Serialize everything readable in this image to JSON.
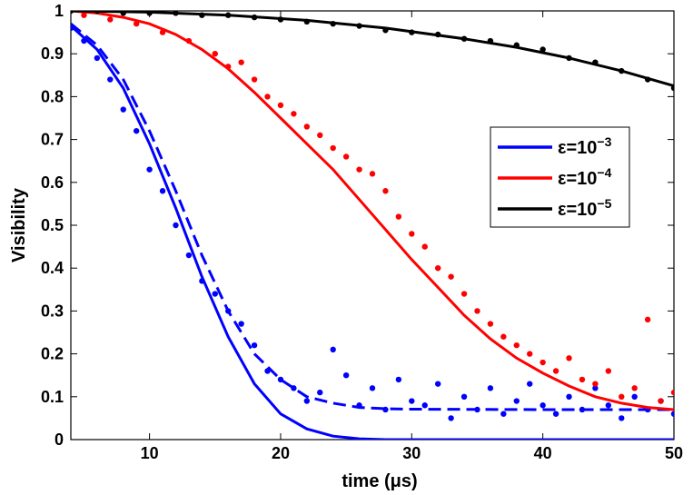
{
  "chart_data": {
    "type": "scatter",
    "xlabel": "time (μs)",
    "ylabel": "Visibility",
    "xlim": [
      4,
      50
    ],
    "ylim": [
      0,
      1
    ],
    "xticks": [
      10,
      20,
      30,
      40,
      50
    ],
    "yticks": [
      0,
      0.1,
      0.2,
      0.3,
      0.4,
      0.5,
      0.6,
      0.7,
      0.8,
      0.9,
      1
    ],
    "grid": false,
    "legend_position": "right",
    "series": [
      {
        "name": "ε=10⁻³",
        "legend_base": "ε=10",
        "legend_exp": "−3",
        "color": "#0000ff",
        "points": [
          [
            4,
            0.96
          ],
          [
            5,
            0.93
          ],
          [
            6,
            0.89
          ],
          [
            7,
            0.84
          ],
          [
            8,
            0.77
          ],
          [
            9,
            0.72
          ],
          [
            10,
            0.63
          ],
          [
            11,
            0.58
          ],
          [
            12,
            0.5
          ],
          [
            13,
            0.43
          ],
          [
            14,
            0.37
          ],
          [
            15,
            0.34
          ],
          [
            16,
            0.3
          ],
          [
            17,
            0.27
          ],
          [
            18,
            0.22
          ],
          [
            19,
            0.16
          ],
          [
            20,
            0.14
          ],
          [
            21,
            0.12
          ],
          [
            22,
            0.09
          ],
          [
            23,
            0.11
          ],
          [
            24,
            0.21
          ],
          [
            25,
            0.15
          ],
          [
            26,
            0.08
          ],
          [
            27,
            0.12
          ],
          [
            28,
            0.07
          ],
          [
            29,
            0.14
          ],
          [
            30,
            0.09
          ],
          [
            31,
            0.08
          ],
          [
            32,
            0.13
          ],
          [
            33,
            0.05
          ],
          [
            34,
            0.1
          ],
          [
            35,
            0.07
          ],
          [
            36,
            0.12
          ],
          [
            37,
            0.06
          ],
          [
            38,
            0.09
          ],
          [
            39,
            0.13
          ],
          [
            40,
            0.08
          ],
          [
            41,
            0.06
          ],
          [
            42,
            0.1
          ],
          [
            43,
            0.07
          ],
          [
            44,
            0.12
          ],
          [
            45,
            0.08
          ],
          [
            46,
            0.05
          ],
          [
            47,
            0.1
          ],
          [
            48,
            0.07
          ],
          [
            49,
            0.09
          ],
          [
            50,
            0.06
          ]
        ],
        "fit_solid": [
          [
            4,
            0.965
          ],
          [
            6,
            0.91
          ],
          [
            8,
            0.82
          ],
          [
            10,
            0.69
          ],
          [
            12,
            0.54
          ],
          [
            14,
            0.38
          ],
          [
            16,
            0.24
          ],
          [
            18,
            0.13
          ],
          [
            20,
            0.06
          ],
          [
            22,
            0.025
          ],
          [
            24,
            0.008
          ],
          [
            26,
            0.002
          ],
          [
            28,
            0
          ],
          [
            30,
            0
          ],
          [
            40,
            0
          ],
          [
            50,
            0
          ]
        ],
        "fit_dashed": [
          [
            4,
            0.97
          ],
          [
            6,
            0.92
          ],
          [
            8,
            0.84
          ],
          [
            10,
            0.72
          ],
          [
            12,
            0.58
          ],
          [
            14,
            0.43
          ],
          [
            16,
            0.3
          ],
          [
            18,
            0.2
          ],
          [
            20,
            0.14
          ],
          [
            22,
            0.1
          ],
          [
            24,
            0.085
          ],
          [
            26,
            0.075
          ],
          [
            28,
            0.072
          ],
          [
            30,
            0.071
          ],
          [
            40,
            0.07
          ],
          [
            50,
            0.07
          ]
        ]
      },
      {
        "name": "ε=10⁻⁴",
        "legend_base": "ε=10",
        "legend_exp": "−4",
        "color": "#ff0000",
        "points": [
          [
            5,
            0.99
          ],
          [
            7,
            0.98
          ],
          [
            9,
            0.97
          ],
          [
            11,
            0.95
          ],
          [
            13,
            0.93
          ],
          [
            15,
            0.9
          ],
          [
            16,
            0.87
          ],
          [
            17,
            0.88
          ],
          [
            18,
            0.84
          ],
          [
            19,
            0.8
          ],
          [
            20,
            0.78
          ],
          [
            21,
            0.76
          ],
          [
            22,
            0.73
          ],
          [
            23,
            0.71
          ],
          [
            24,
            0.68
          ],
          [
            25,
            0.66
          ],
          [
            26,
            0.63
          ],
          [
            27,
            0.62
          ],
          [
            28,
            0.58
          ],
          [
            29,
            0.52
          ],
          [
            30,
            0.48
          ],
          [
            31,
            0.45
          ],
          [
            32,
            0.4
          ],
          [
            33,
            0.38
          ],
          [
            34,
            0.34
          ],
          [
            35,
            0.3
          ],
          [
            36,
            0.27
          ],
          [
            37,
            0.24
          ],
          [
            38,
            0.22
          ],
          [
            39,
            0.2
          ],
          [
            40,
            0.18
          ],
          [
            41,
            0.16
          ],
          [
            42,
            0.19
          ],
          [
            43,
            0.14
          ],
          [
            44,
            0.13
          ],
          [
            45,
            0.16
          ],
          [
            46,
            0.1
          ],
          [
            47,
            0.12
          ],
          [
            48,
            0.28
          ],
          [
            49,
            0.09
          ],
          [
            50,
            0.11
          ]
        ],
        "fit_solid": [
          [
            4,
            1.0
          ],
          [
            6,
            0.995
          ],
          [
            8,
            0.985
          ],
          [
            10,
            0.97
          ],
          [
            12,
            0.945
          ],
          [
            14,
            0.91
          ],
          [
            16,
            0.865
          ],
          [
            18,
            0.81
          ],
          [
            20,
            0.75
          ],
          [
            22,
            0.69
          ],
          [
            24,
            0.63
          ],
          [
            26,
            0.56
          ],
          [
            28,
            0.49
          ],
          [
            30,
            0.42
          ],
          [
            32,
            0.355
          ],
          [
            34,
            0.29
          ],
          [
            36,
            0.235
          ],
          [
            38,
            0.19
          ],
          [
            40,
            0.155
          ],
          [
            42,
            0.125
          ],
          [
            44,
            0.1
          ],
          [
            46,
            0.085
          ],
          [
            48,
            0.075
          ],
          [
            50,
            0.07
          ]
        ]
      },
      {
        "name": "ε=10⁻⁵",
        "legend_base": "ε=10",
        "legend_exp": "−5",
        "color": "#000000",
        "points": [
          [
            4,
            1.0
          ],
          [
            6,
            1.0
          ],
          [
            8,
            0.995
          ],
          [
            10,
            0.995
          ],
          [
            12,
            0.995
          ],
          [
            14,
            0.99
          ],
          [
            16,
            0.99
          ],
          [
            18,
            0.985
          ],
          [
            20,
            0.98
          ],
          [
            22,
            0.975
          ],
          [
            24,
            0.97
          ],
          [
            26,
            0.965
          ],
          [
            28,
            0.955
          ],
          [
            30,
            0.95
          ],
          [
            32,
            0.945
          ],
          [
            34,
            0.935
          ],
          [
            36,
            0.93
          ],
          [
            38,
            0.92
          ],
          [
            40,
            0.91
          ],
          [
            42,
            0.89
          ],
          [
            44,
            0.88
          ],
          [
            46,
            0.86
          ],
          [
            48,
            0.84
          ],
          [
            50,
            0.82
          ]
        ],
        "fit_solid": [
          [
            4,
            1.0
          ],
          [
            10,
            0.997
          ],
          [
            16,
            0.99
          ],
          [
            22,
            0.978
          ],
          [
            28,
            0.96
          ],
          [
            34,
            0.935
          ],
          [
            38,
            0.915
          ],
          [
            42,
            0.89
          ],
          [
            46,
            0.86
          ],
          [
            50,
            0.825
          ]
        ]
      }
    ]
  }
}
